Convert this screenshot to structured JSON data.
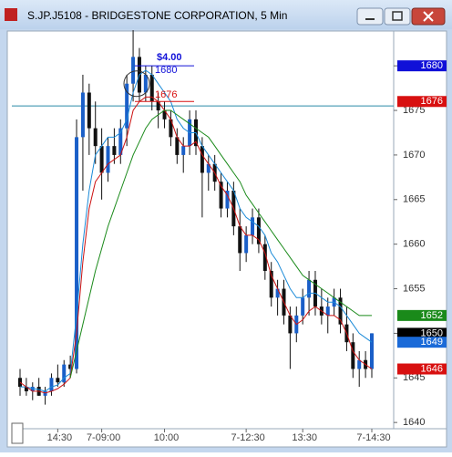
{
  "chart_data": {
    "type": "candlestick",
    "title": "S.JP.J5108 - BRIDGESTONE CORPORATION, 5 Min",
    "categories": [
      null,
      null,
      null,
      null,
      null,
      null,
      "14:30",
      null,
      null,
      null,
      null,
      null,
      null,
      "7-09:00",
      null,
      null,
      null,
      null,
      null,
      null,
      null,
      null,
      null,
      "10:00",
      null,
      null,
      null,
      null,
      null,
      null,
      null,
      null,
      null,
      null,
      null,
      null,
      "7-12:30",
      null,
      null,
      null,
      null,
      null,
      null,
      null,
      null,
      "13:30",
      null,
      null,
      null,
      null,
      null,
      null,
      null,
      null,
      null,
      null,
      "7-14:30"
    ],
    "open": [
      1645,
      1644,
      1643.5,
      1644,
      1643,
      1643.5,
      1645,
      1644.5,
      1646.5,
      1646,
      1672,
      1677,
      1673,
      1671,
      1668,
      1671,
      1670,
      1673,
      1678,
      1681,
      1677,
      1679,
      1676,
      1675,
      1674,
      1672,
      1670,
      1671,
      1674,
      1671,
      1668,
      1669,
      1667,
      1664,
      1666,
      1662,
      1659,
      1661,
      1663,
      1660,
      1657,
      1654,
      1655,
      1652,
      1650,
      1652,
      1654,
      1656,
      1653,
      1652,
      1653,
      1654,
      1651,
      1649,
      1646,
      1647,
      1646
    ],
    "high": [
      1646,
      1645,
      1644.5,
      1645,
      1644,
      1645.5,
      1646.5,
      1647,
      1647.5,
      1674,
      1679,
      1678,
      1676,
      1673,
      1672,
      1673,
      1674,
      1679,
      1684,
      1682,
      1680,
      1680,
      1677,
      1676,
      1675,
      1673,
      1672,
      1675,
      1675,
      1672,
      1670,
      1670,
      1668,
      1667,
      1667,
      1664,
      1662,
      1664,
      1664,
      1661,
      1658,
      1656,
      1656,
      1653,
      1653,
      1655,
      1657,
      1657,
      1655,
      1654,
      1655,
      1655,
      1653,
      1650,
      1648,
      1648,
      1650
    ],
    "low": [
      1643,
      1643,
      1642.5,
      1643,
      1642,
      1643,
      1644,
      1644,
      1645,
      1645.5,
      1666,
      1670,
      1669,
      1665,
      1667,
      1669,
      1669,
      1671,
      1676,
      1676,
      1676,
      1675,
      1673,
      1673,
      1671,
      1669,
      1668,
      1670,
      1670,
      1663,
      1666,
      1666,
      1663,
      1663,
      1661,
      1657,
      1658,
      1660,
      1659,
      1656,
      1653,
      1652,
      1651,
      1646,
      1649,
      1651,
      1652,
      1652,
      1651,
      1650,
      1652,
      1650,
      1648,
      1645,
      1644,
      1645,
      1645
    ],
    "close": [
      1644,
      1643.5,
      1644,
      1643,
      1643.5,
      1645,
      1644.5,
      1646.5,
      1646,
      1672,
      1677,
      1673,
      1671,
      1668,
      1671,
      1670,
      1673,
      1678,
      1681,
      1677,
      1679,
      1676,
      1675,
      1674,
      1672,
      1670,
      1671,
      1674,
      1671,
      1668,
      1669,
      1667,
      1664,
      1666,
      1662,
      1659,
      1661,
      1663,
      1660,
      1657,
      1654,
      1655,
      1652,
      1650,
      1652,
      1654,
      1656,
      1653,
      1652,
      1653,
      1654,
      1651,
      1649,
      1646,
      1647,
      1646,
      1650
    ],
    "up_color": "#1a5fc8",
    "down_color": "#111111",
    "series": [
      {
        "color": "#1a8ad8",
        "values": [
          1644,
          1644,
          1643.8,
          1643.7,
          1643.5,
          1644,
          1644.2,
          1645,
          1645.5,
          1652,
          1660,
          1666,
          1670,
          1671,
          1672,
          1672,
          1672.5,
          1674,
          1677,
          1679,
          1679.5,
          1679,
          1678,
          1677,
          1676,
          1674,
          1673,
          1672.5,
          1672.5,
          1671,
          1670,
          1669,
          1668,
          1667,
          1666,
          1664,
          1663,
          1662.5,
          1662,
          1661,
          1659,
          1658,
          1656.5,
          1655,
          1654,
          1654,
          1654.5,
          1654.5,
          1654,
          1653.5,
          1653.5,
          1653,
          1652,
          1651,
          1650,
          1649.5,
          1649
        ]
      },
      {
        "color": "#cc1111",
        "values": [
          1644.5,
          1644,
          1643.5,
          1643.5,
          1643.3,
          1643.5,
          1643.8,
          1644.3,
          1645,
          1650,
          1658,
          1664,
          1667,
          1668,
          1669,
          1669.5,
          1670,
          1672,
          1675,
          1676,
          1676.5,
          1676.5,
          1676,
          1675,
          1674,
          1672,
          1671,
          1671,
          1671.5,
          1670,
          1669,
          1668,
          1666.5,
          1665.5,
          1664,
          1662,
          1661,
          1661,
          1660.5,
          1659,
          1656.5,
          1655,
          1653.5,
          1652,
          1651,
          1651.5,
          1652.5,
          1653,
          1652.5,
          1652,
          1652,
          1651.5,
          1650,
          1648,
          1647,
          1646.5,
          1646
        ]
      },
      {
        "color": "#1a8a1a",
        "values": [
          null,
          null,
          null,
          null,
          null,
          null,
          null,
          null,
          1645,
          1648,
          1651,
          1654,
          1657,
          1659.5,
          1662,
          1664,
          1666,
          1668,
          1670,
          1671.5,
          1673,
          1674,
          1674.5,
          1675,
          1675,
          1674.5,
          1674,
          1673.5,
          1673,
          1672.5,
          1672,
          1671,
          1670,
          1669,
          1668,
          1667,
          1665.5,
          1664.5,
          1663.5,
          1662.5,
          1661.5,
          1660.5,
          1659.5,
          1658.5,
          1657.5,
          1656.5,
          1656,
          1655.5,
          1655,
          1654.5,
          1654,
          1653.5,
          1653,
          1652.5,
          1652,
          1652,
          1652
        ]
      }
    ],
    "ylim": [
      1639.3,
      1683.7
    ],
    "yticks": [
      1640,
      1645,
      1650,
      1655,
      1660,
      1665,
      1670,
      1675,
      1680
    ],
    "hline": 1675.5,
    "hline_color": "#2a8aa8",
    "measure": {
      "label": "$4.00",
      "upper": 1680,
      "lower": 1676
    },
    "price_tags": [
      {
        "value": 1680,
        "color": "#1010d8"
      },
      {
        "value": 1676,
        "color": "#d81010"
      },
      {
        "value": 1652,
        "color": "#1a8a1a"
      },
      {
        "value": 1650,
        "color": "#000000"
      },
      {
        "value": 1649,
        "color": "#1a6ad8"
      },
      {
        "value": 1646,
        "color": "#d81010"
      }
    ]
  }
}
